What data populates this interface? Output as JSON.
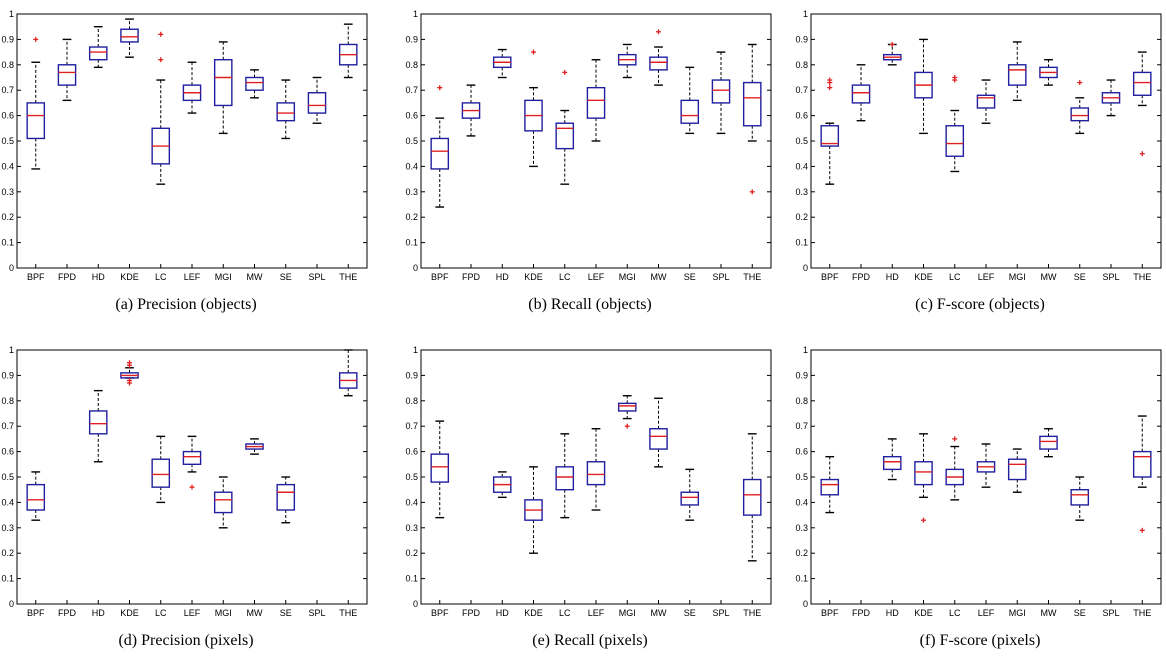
{
  "chart_data": [
    {
      "type": "box",
      "caption": "(a) Precision (objects)",
      "categories": [
        "BPF",
        "FPD",
        "HD",
        "KDE",
        "LC",
        "LEF",
        "MGI",
        "MW",
        "SE",
        "SPL",
        "THE"
      ],
      "ylim": [
        0,
        1
      ],
      "yticks": [
        "0",
        "0.1",
        "0.2",
        "0.3",
        "0.4",
        "0.5",
        "0.6",
        "0.7",
        "0.8",
        "0.9",
        "1"
      ],
      "boxes": [
        {
          "wlo": 0.39,
          "q1": 0.51,
          "med": 0.6,
          "q3": 0.65,
          "whi": 0.81,
          "outliers": [
            0.9
          ]
        },
        {
          "wlo": 0.66,
          "q1": 0.72,
          "med": 0.77,
          "q3": 0.8,
          "whi": 0.9,
          "outliers": []
        },
        {
          "wlo": 0.79,
          "q1": 0.82,
          "med": 0.85,
          "q3": 0.87,
          "whi": 0.95,
          "outliers": []
        },
        {
          "wlo": 0.83,
          "q1": 0.89,
          "med": 0.91,
          "q3": 0.94,
          "whi": 0.98,
          "outliers": []
        },
        {
          "wlo": 0.33,
          "q1": 0.41,
          "med": 0.48,
          "q3": 0.55,
          "whi": 0.74,
          "outliers": [
            0.82,
            0.92
          ]
        },
        {
          "wlo": 0.61,
          "q1": 0.66,
          "med": 0.69,
          "q3": 0.72,
          "whi": 0.81,
          "outliers": []
        },
        {
          "wlo": 0.53,
          "q1": 0.64,
          "med": 0.75,
          "q3": 0.82,
          "whi": 0.89,
          "outliers": []
        },
        {
          "wlo": 0.67,
          "q1": 0.7,
          "med": 0.73,
          "q3": 0.75,
          "whi": 0.78,
          "outliers": []
        },
        {
          "wlo": 0.51,
          "q1": 0.58,
          "med": 0.61,
          "q3": 0.65,
          "whi": 0.74,
          "outliers": []
        },
        {
          "wlo": 0.57,
          "q1": 0.61,
          "med": 0.64,
          "q3": 0.69,
          "whi": 0.75,
          "outliers": []
        },
        {
          "wlo": 0.75,
          "q1": 0.8,
          "med": 0.84,
          "q3": 0.88,
          "whi": 0.96,
          "outliers": []
        }
      ]
    },
    {
      "type": "box",
      "caption": "(b) Recall (objects)",
      "categories": [
        "BPF",
        "FPD",
        "HD",
        "KDE",
        "LC",
        "LEF",
        "MGI",
        "MW",
        "SE",
        "SPL",
        "THE"
      ],
      "ylim": [
        0,
        1
      ],
      "yticks": [
        "0",
        "0.1",
        "0.2",
        "0.3",
        "0.4",
        "0.5",
        "0.6",
        "0.7",
        "0.8",
        "0.9",
        "1"
      ],
      "boxes": [
        {
          "wlo": 0.24,
          "q1": 0.39,
          "med": 0.46,
          "q3": 0.51,
          "whi": 0.59,
          "outliers": [
            0.71
          ]
        },
        {
          "wlo": 0.52,
          "q1": 0.59,
          "med": 0.62,
          "q3": 0.65,
          "whi": 0.72,
          "outliers": []
        },
        {
          "wlo": 0.75,
          "q1": 0.79,
          "med": 0.81,
          "q3": 0.83,
          "whi": 0.86,
          "outliers": []
        },
        {
          "wlo": 0.4,
          "q1": 0.54,
          "med": 0.6,
          "q3": 0.66,
          "whi": 0.71,
          "outliers": [
            0.85
          ]
        },
        {
          "wlo": 0.33,
          "q1": 0.47,
          "med": 0.55,
          "q3": 0.57,
          "whi": 0.62,
          "outliers": [
            0.77
          ]
        },
        {
          "wlo": 0.5,
          "q1": 0.59,
          "med": 0.66,
          "q3": 0.71,
          "whi": 0.82,
          "outliers": []
        },
        {
          "wlo": 0.75,
          "q1": 0.8,
          "med": 0.82,
          "q3": 0.84,
          "whi": 0.88,
          "outliers": []
        },
        {
          "wlo": 0.72,
          "q1": 0.78,
          "med": 0.81,
          "q3": 0.83,
          "whi": 0.87,
          "outliers": [
            0.93
          ]
        },
        {
          "wlo": 0.53,
          "q1": 0.57,
          "med": 0.6,
          "q3": 0.66,
          "whi": 0.79,
          "outliers": []
        },
        {
          "wlo": 0.53,
          "q1": 0.65,
          "med": 0.7,
          "q3": 0.74,
          "whi": 0.85,
          "outliers": []
        },
        {
          "wlo": 0.5,
          "q1": 0.56,
          "med": 0.67,
          "q3": 0.73,
          "whi": 0.88,
          "outliers": [
            0.3
          ]
        }
      ]
    },
    {
      "type": "box",
      "caption": "(c) F-score (objects)",
      "categories": [
        "BPF",
        "FPD",
        "HD",
        "KDE",
        "LC",
        "LEF",
        "MGI",
        "MW",
        "SE",
        "SPL",
        "THE"
      ],
      "ylim": [
        0,
        1
      ],
      "yticks": [
        "0",
        "0.1",
        "0.2",
        "0.3",
        "0.4",
        "0.5",
        "0.6",
        "0.7",
        "0.8",
        "0.9",
        "1"
      ],
      "boxes": [
        {
          "wlo": 0.33,
          "q1": 0.48,
          "med": 0.49,
          "q3": 0.56,
          "whi": 0.57,
          "outliers": [
            0.71,
            0.73,
            0.74
          ]
        },
        {
          "wlo": 0.58,
          "q1": 0.65,
          "med": 0.69,
          "q3": 0.72,
          "whi": 0.8,
          "outliers": []
        },
        {
          "wlo": 0.8,
          "q1": 0.82,
          "med": 0.83,
          "q3": 0.84,
          "whi": 0.88,
          "outliers": [
            0.88
          ]
        },
        {
          "wlo": 0.53,
          "q1": 0.67,
          "med": 0.72,
          "q3": 0.77,
          "whi": 0.9,
          "outliers": []
        },
        {
          "wlo": 0.38,
          "q1": 0.44,
          "med": 0.49,
          "q3": 0.56,
          "whi": 0.62,
          "outliers": [
            0.74,
            0.75
          ]
        },
        {
          "wlo": 0.57,
          "q1": 0.63,
          "med": 0.67,
          "q3": 0.68,
          "whi": 0.74,
          "outliers": []
        },
        {
          "wlo": 0.66,
          "q1": 0.72,
          "med": 0.78,
          "q3": 0.8,
          "whi": 0.89,
          "outliers": []
        },
        {
          "wlo": 0.72,
          "q1": 0.75,
          "med": 0.77,
          "q3": 0.79,
          "whi": 0.82,
          "outliers": []
        },
        {
          "wlo": 0.53,
          "q1": 0.58,
          "med": 0.6,
          "q3": 0.63,
          "whi": 0.67,
          "outliers": [
            0.73
          ]
        },
        {
          "wlo": 0.6,
          "q1": 0.65,
          "med": 0.67,
          "q3": 0.69,
          "whi": 0.74,
          "outliers": []
        },
        {
          "wlo": 0.64,
          "q1": 0.68,
          "med": 0.73,
          "q3": 0.77,
          "whi": 0.85,
          "outliers": [
            0.45
          ]
        }
      ]
    },
    {
      "type": "box",
      "caption": "(d) Precision (pixels)",
      "categories": [
        "BPF",
        "FPD",
        "HD",
        "KDE",
        "LC",
        "LEF",
        "MGI",
        "MW",
        "SE",
        "SPL",
        "THE"
      ],
      "ylim": [
        0,
        1
      ],
      "yticks": [
        "0",
        "0.1",
        "0.2",
        "0.3",
        "0.4",
        "0.5",
        "0.6",
        "0.7",
        "0.8",
        "0.9",
        "1"
      ],
      "boxes": [
        {
          "wlo": 0.33,
          "q1": 0.37,
          "med": 0.41,
          "q3": 0.47,
          "whi": 0.52,
          "outliers": []
        },
        null,
        {
          "wlo": 0.56,
          "q1": 0.67,
          "med": 0.71,
          "q3": 0.76,
          "whi": 0.84,
          "outliers": []
        },
        {
          "wlo": 0.89,
          "q1": 0.89,
          "med": 0.9,
          "q3": 0.91,
          "whi": 0.93,
          "outliers": [
            0.87,
            0.88,
            0.94,
            0.95
          ]
        },
        {
          "wlo": 0.4,
          "q1": 0.46,
          "med": 0.51,
          "q3": 0.57,
          "whi": 0.66,
          "outliers": []
        },
        {
          "wlo": 0.52,
          "q1": 0.55,
          "med": 0.58,
          "q3": 0.6,
          "whi": 0.66,
          "outliers": [
            0.46
          ]
        },
        {
          "wlo": 0.3,
          "q1": 0.36,
          "med": 0.41,
          "q3": 0.44,
          "whi": 0.5,
          "outliers": []
        },
        {
          "wlo": 0.59,
          "q1": 0.61,
          "med": 0.62,
          "q3": 0.63,
          "whi": 0.65,
          "outliers": []
        },
        {
          "wlo": 0.32,
          "q1": 0.37,
          "med": 0.44,
          "q3": 0.47,
          "whi": 0.5,
          "outliers": []
        },
        null,
        {
          "wlo": 0.82,
          "q1": 0.85,
          "med": 0.88,
          "q3": 0.91,
          "whi": 1.0,
          "outliers": []
        }
      ]
    },
    {
      "type": "box",
      "caption": "(e) Recall (pixels)",
      "categories": [
        "BPF",
        "FPD",
        "HD",
        "KDE",
        "LC",
        "LEF",
        "MGI",
        "MW",
        "SE",
        "SPL",
        "THE"
      ],
      "ylim": [
        0,
        1
      ],
      "yticks": [
        "0",
        "0.1",
        "0.2",
        "0.3",
        "0.4",
        "0.5",
        "0.6",
        "0.7",
        "0.8",
        "0.9",
        "1"
      ],
      "boxes": [
        {
          "wlo": 0.34,
          "q1": 0.48,
          "med": 0.54,
          "q3": 0.59,
          "whi": 0.72,
          "outliers": []
        },
        null,
        {
          "wlo": 0.42,
          "q1": 0.44,
          "med": 0.47,
          "q3": 0.5,
          "whi": 0.52,
          "outliers": []
        },
        {
          "wlo": 0.2,
          "q1": 0.33,
          "med": 0.37,
          "q3": 0.41,
          "whi": 0.54,
          "outliers": []
        },
        {
          "wlo": 0.34,
          "q1": 0.45,
          "med": 0.5,
          "q3": 0.54,
          "whi": 0.67,
          "outliers": []
        },
        {
          "wlo": 0.37,
          "q1": 0.47,
          "med": 0.51,
          "q3": 0.56,
          "whi": 0.69,
          "outliers": []
        },
        {
          "wlo": 0.73,
          "q1": 0.76,
          "med": 0.78,
          "q3": 0.79,
          "whi": 0.82,
          "outliers": [
            0.7
          ]
        },
        {
          "wlo": 0.54,
          "q1": 0.61,
          "med": 0.66,
          "q3": 0.69,
          "whi": 0.81,
          "outliers": []
        },
        {
          "wlo": 0.33,
          "q1": 0.39,
          "med": 0.42,
          "q3": 0.44,
          "whi": 0.53,
          "outliers": []
        },
        null,
        {
          "wlo": 0.17,
          "q1": 0.35,
          "med": 0.43,
          "q3": 0.49,
          "whi": 0.67,
          "outliers": []
        }
      ]
    },
    {
      "type": "box",
      "caption": "(f) F-score (pixels)",
      "categories": [
        "BPF",
        "FPD",
        "HD",
        "KDE",
        "LC",
        "LEF",
        "MGI",
        "MW",
        "SE",
        "SPL",
        "THE"
      ],
      "ylim": [
        0,
        1
      ],
      "yticks": [
        "0",
        "0.1",
        "0.2",
        "0.3",
        "0.4",
        "0.5",
        "0.6",
        "0.7",
        "0.8",
        "0.9",
        "1"
      ],
      "boxes": [
        {
          "wlo": 0.36,
          "q1": 0.43,
          "med": 0.47,
          "q3": 0.49,
          "whi": 0.58,
          "outliers": []
        },
        null,
        {
          "wlo": 0.49,
          "q1": 0.53,
          "med": 0.56,
          "q3": 0.58,
          "whi": 0.65,
          "outliers": []
        },
        {
          "wlo": 0.42,
          "q1": 0.47,
          "med": 0.52,
          "q3": 0.56,
          "whi": 0.67,
          "outliers": [
            0.33
          ]
        },
        {
          "wlo": 0.41,
          "q1": 0.47,
          "med": 0.5,
          "q3": 0.53,
          "whi": 0.62,
          "outliers": [
            0.65
          ]
        },
        {
          "wlo": 0.46,
          "q1": 0.52,
          "med": 0.54,
          "q3": 0.56,
          "whi": 0.63,
          "outliers": []
        },
        {
          "wlo": 0.44,
          "q1": 0.49,
          "med": 0.55,
          "q3": 0.57,
          "whi": 0.61,
          "outliers": []
        },
        {
          "wlo": 0.58,
          "q1": 0.61,
          "med": 0.64,
          "q3": 0.66,
          "whi": 0.69,
          "outliers": []
        },
        {
          "wlo": 0.33,
          "q1": 0.39,
          "med": 0.43,
          "q3": 0.45,
          "whi": 0.5,
          "outliers": []
        },
        null,
        {
          "wlo": 0.46,
          "q1": 0.5,
          "med": 0.58,
          "q3": 0.6,
          "whi": 0.74,
          "outliers": [
            0.29
          ]
        }
      ]
    }
  ],
  "colors": {
    "box": "#1f1fa0",
    "median": "#e02020",
    "outlier": "#e02020",
    "whisker": "#000000"
  }
}
